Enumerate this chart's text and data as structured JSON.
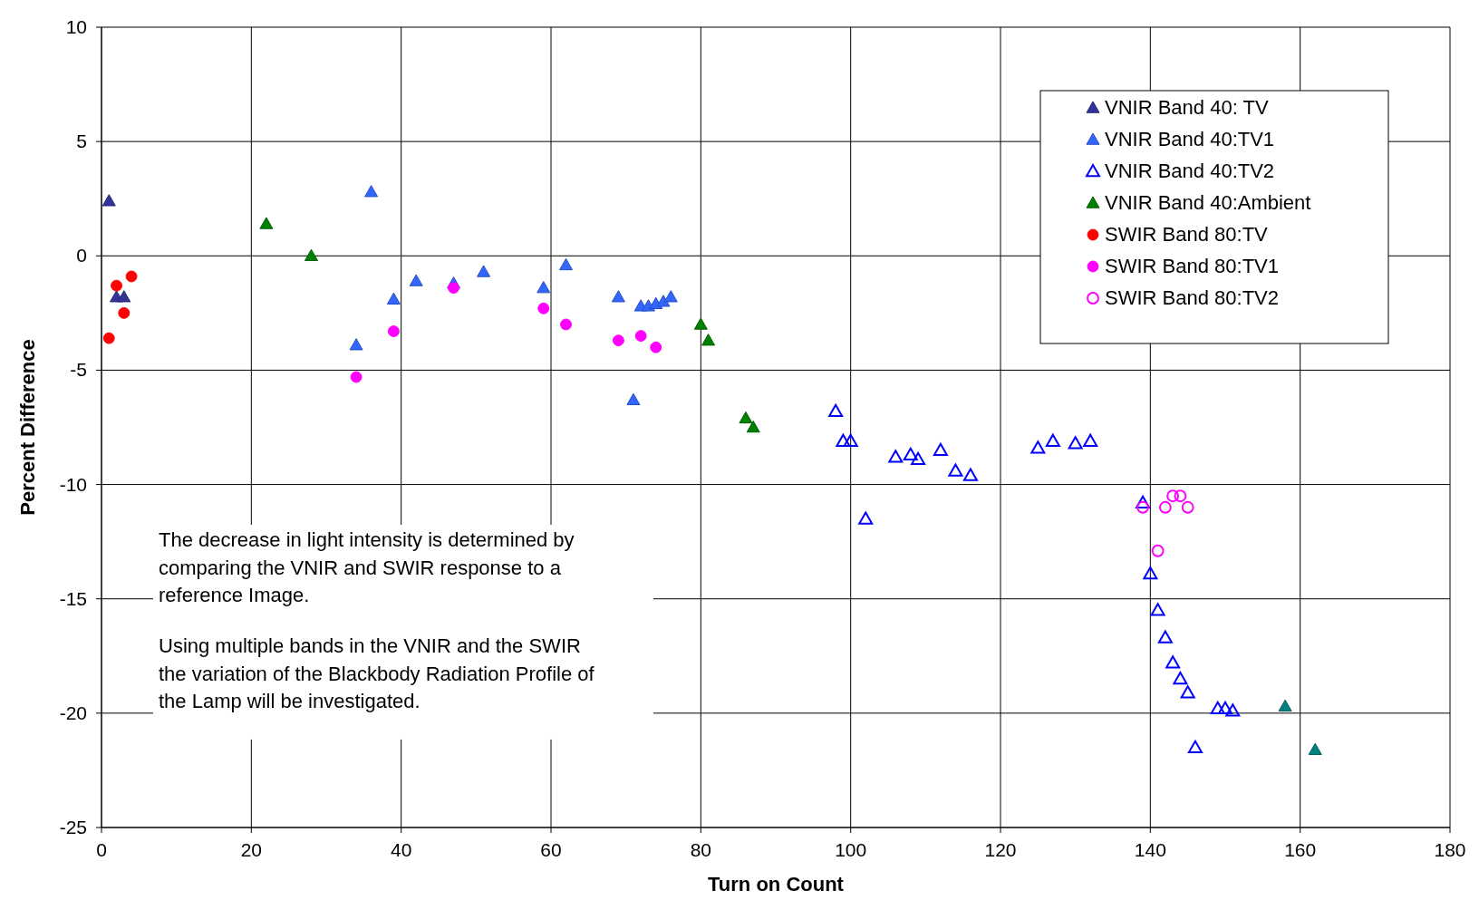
{
  "chart_data": {
    "type": "scatter",
    "xlabel": "Turn on Count",
    "ylabel": "Percent Difference",
    "xlim": [
      0,
      180
    ],
    "xticks": [
      0,
      20,
      40,
      60,
      80,
      100,
      120,
      140,
      160,
      180
    ],
    "ylim": [
      -25,
      10
    ],
    "yticks": [
      -25,
      -20,
      -15,
      -10,
      -5,
      0,
      5,
      10
    ],
    "grid": true,
    "legend": "top right",
    "annotations": [
      "The decrease in light intensity is determined by\ncomparing the VNIR and SWIR response to a\nreference Image.",
      "Using multiple bands in the VNIR and the SWIR\nthe variation of the Blackbody Radiation Profile of\nthe Lamp will be investigated."
    ],
    "series": [
      {
        "name": "VNIR Band 40: TV",
        "color": "#333399",
        "marker": "triangle",
        "x": [
          1,
          2,
          3
        ],
        "values": [
          2.4,
          -1.8,
          -1.8
        ]
      },
      {
        "name": "VNIR Band 40:TV1",
        "color": "#3366ff",
        "marker": "triangle",
        "x": [
          34,
          36,
          39,
          42,
          47,
          51,
          59,
          62,
          69,
          71,
          72,
          73,
          74,
          75,
          76
        ],
        "values": [
          -3.9,
          2.8,
          -1.9,
          -1.1,
          -1.2,
          -0.7,
          -1.4,
          -0.4,
          -1.8,
          -6.3,
          -2.2,
          -2.2,
          -2.1,
          -2.0,
          -1.8
        ]
      },
      {
        "name": "VNIR Band 40:TV2",
        "color": "#0000ff",
        "marker": "triangle-open",
        "x": [
          98,
          99,
          100,
          102,
          106,
          108,
          109,
          112,
          114,
          116,
          125,
          127,
          130,
          132,
          139,
          140,
          141,
          142,
          143,
          144,
          145,
          146,
          149,
          150,
          151
        ],
        "values": [
          -6.8,
          -8.1,
          -8.1,
          -11.5,
          -8.8,
          -8.7,
          -8.9,
          -8.5,
          -9.4,
          -9.6,
          -8.4,
          -8.1,
          -8.2,
          -8.1,
          -10.8,
          -13.9,
          -15.5,
          -16.7,
          -17.8,
          -18.5,
          -19.1,
          -21.5,
          -19.8,
          -19.8,
          -19.9
        ]
      },
      {
        "name": "VNIR Band 40:Ambient",
        "color": "#008000",
        "marker": "triangle",
        "x": [
          22,
          28,
          80,
          81,
          86,
          87
        ],
        "values": [
          1.4,
          0.0,
          -3.0,
          -3.7,
          -7.1,
          -7.5
        ]
      },
      {
        "name": "SWIR Band 80:TV",
        "color": "#ff0000",
        "marker": "circle",
        "x": [
          1,
          2,
          3,
          4
        ],
        "values": [
          -3.6,
          -1.3,
          -2.5,
          -0.9
        ]
      },
      {
        "name": "SWIR Band 80:TV1",
        "color": "#ff00ff",
        "marker": "circle",
        "x": [
          34,
          39,
          47,
          59,
          62,
          69,
          72,
          74
        ],
        "values": [
          -5.3,
          -3.3,
          -1.4,
          -2.3,
          -3.0,
          -3.7,
          -3.5,
          -4.0
        ]
      },
      {
        "name": "SWIR Band 80:TV2",
        "color": "#ff00ff",
        "marker": "circle-open",
        "x": [
          139,
          141,
          142,
          143,
          144,
          145
        ],
        "values": [
          -11.0,
          -12.9,
          -11.0,
          -10.5,
          -10.5,
          -11.0
        ]
      },
      {
        "color": "#008080",
        "marker": "triangle",
        "x": [
          158,
          162
        ],
        "values": [
          -19.7,
          -21.6
        ]
      }
    ]
  }
}
